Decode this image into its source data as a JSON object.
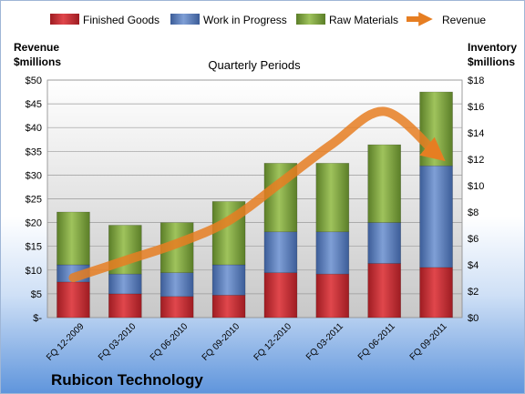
{
  "chart_data": {
    "type": "bar",
    "stacked": true,
    "title": "Quarterly Periods",
    "company": "Rubicon Technology",
    "ylabel_left": [
      "Revenue",
      "$millions"
    ],
    "ylabel_right": [
      "Inventory",
      "$millions"
    ],
    "ylim_left": [
      0,
      50
    ],
    "ylim_right": [
      0,
      18
    ],
    "left_ticks": [
      "$-",
      "$5",
      "$10",
      "$15",
      "$20",
      "$25",
      "$30",
      "$35",
      "$40",
      "$45",
      "$50"
    ],
    "right_ticks": [
      "$0",
      "$2",
      "$4",
      "$6",
      "$8",
      "$10",
      "$12",
      "$14",
      "$16",
      "$18"
    ],
    "categories": [
      "FQ 12-2009",
      "FQ 03-2010",
      "FQ 06-2010",
      "FQ 09-2010",
      "FQ 12-2010",
      "FQ 03-2011",
      "FQ 06-2011",
      "FQ 09-2011"
    ],
    "series": [
      {
        "name": "Finished Goods",
        "axis": "right",
        "color": "#c0272d",
        "values": [
          2.7,
          1.8,
          1.6,
          1.7,
          3.4,
          3.3,
          4.1,
          3.8
        ]
      },
      {
        "name": "Work in Progress",
        "axis": "right",
        "color": "#4f75b8",
        "values": [
          1.3,
          1.5,
          1.8,
          2.3,
          3.1,
          3.2,
          3.1,
          7.7
        ]
      },
      {
        "name": "Raw Materials",
        "axis": "right",
        "color": "#7aa23a",
        "values": [
          4.0,
          3.7,
          3.8,
          4.8,
          5.2,
          5.2,
          5.9,
          5.6
        ]
      },
      {
        "name": "Revenue",
        "axis": "left",
        "type": "line",
        "color": "#e67e22",
        "values": [
          8.4,
          12.0,
          15.6,
          20.4,
          28.4,
          36.6,
          43.4,
          34.5
        ]
      }
    ],
    "grid": true,
    "legend_position": "top"
  }
}
